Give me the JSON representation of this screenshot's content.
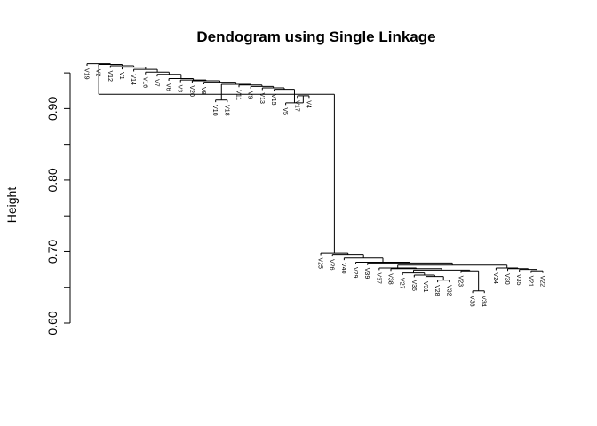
{
  "chart_data": {
    "type": "dendrogram",
    "title": "Dendogram using Single Linkage",
    "ylabel": "Height",
    "xlabel": "",
    "ylim": [
      0.6,
      0.97
    ],
    "y_ticks": [
      0.6,
      0.7,
      0.8,
      0.9
    ],
    "y_tick_labels": [
      "0.60",
      "0.70",
      "0.80",
      "0.90"
    ],
    "y_minor_ticks": [
      0.65,
      0.75,
      0.85,
      0.95
    ],
    "leaf_label_offset": 0.003,
    "leaves": [
      "V19",
      "V2",
      "V12",
      "V1",
      "V14",
      "V16",
      "V7",
      "V6",
      "V3",
      "V20",
      "V8",
      "V10",
      "V18",
      "V11",
      "V9",
      "V13",
      "V15",
      "V5",
      "V17",
      "V4",
      "V25",
      "V26",
      "V40",
      "V29",
      "V39",
      "V37",
      "V38",
      "V27",
      "V36",
      "V31",
      "V28",
      "V32",
      "V23",
      "V33",
      "V34",
      "V24",
      "V30",
      "V35",
      "V21",
      "V22"
    ],
    "merges": [
      {
        "a": "V10",
        "b": "V18",
        "height": 0.912
      },
      {
        "a": "V17",
        "b": "V4",
        "height": 0.918
      },
      {
        "a": "V5",
        "b": "c2",
        "height": 0.908
      },
      {
        "a": "V15",
        "b": "c3",
        "height": 0.927
      },
      {
        "a": "V13",
        "b": "c4",
        "height": 0.929
      },
      {
        "a": "V9",
        "b": "c5",
        "height": 0.931
      },
      {
        "a": "V11",
        "b": "c6",
        "height": 0.933
      },
      {
        "a": "c1",
        "b": "c7",
        "height": 0.934
      },
      {
        "a": "V8",
        "b": "c8",
        "height": 0.937
      },
      {
        "a": "V20",
        "b": "c9",
        "height": 0.939
      },
      {
        "a": "V3",
        "b": "c10",
        "height": 0.94
      },
      {
        "a": "V6",
        "b": "c11",
        "height": 0.942
      },
      {
        "a": "V7",
        "b": "c12",
        "height": 0.948
      },
      {
        "a": "V16",
        "b": "c13",
        "height": 0.951
      },
      {
        "a": "V14",
        "b": "c14",
        "height": 0.955
      },
      {
        "a": "V1",
        "b": "c15",
        "height": 0.958
      },
      {
        "a": "V12",
        "b": "c16",
        "height": 0.96
      },
      {
        "a": "V2",
        "b": "c17",
        "height": 0.962
      },
      {
        "a": "V19",
        "b": "c18",
        "height": 0.963
      },
      {
        "a": "V33",
        "b": "V34",
        "height": 0.645
      },
      {
        "a": "V28",
        "b": "V32",
        "height": 0.66
      },
      {
        "a": "V31",
        "b": "c21",
        "height": 0.665
      },
      {
        "a": "V36",
        "b": "c22",
        "height": 0.667
      },
      {
        "a": "V27",
        "b": "c23",
        "height": 0.67
      },
      {
        "a": "V21",
        "b": "V22",
        "height": 0.673
      },
      {
        "a": "V23",
        "b": "c20",
        "height": 0.673
      },
      {
        "a": "c24",
        "b": "c26",
        "height": 0.674
      },
      {
        "a": "V35",
        "b": "c25",
        "height": 0.675
      },
      {
        "a": "V30",
        "b": "c28",
        "height": 0.676
      },
      {
        "a": "V24",
        "b": "c29",
        "height": 0.677
      },
      {
        "a": "V38",
        "b": "c27",
        "height": 0.676
      },
      {
        "a": "V37",
        "b": "c31",
        "height": 0.677
      },
      {
        "a": "c32",
        "b": "c30",
        "height": 0.681
      },
      {
        "a": "V39",
        "b": "c33",
        "height": 0.684
      },
      {
        "a": "V29",
        "b": "c34",
        "height": 0.685
      },
      {
        "a": "V40",
        "b": "c35",
        "height": 0.691
      },
      {
        "a": "V26",
        "b": "c36",
        "height": 0.696
      },
      {
        "a": "V25",
        "b": "c37",
        "height": 0.698
      },
      {
        "a": "c19",
        "b": "c38",
        "height": 0.92
      }
    ]
  }
}
